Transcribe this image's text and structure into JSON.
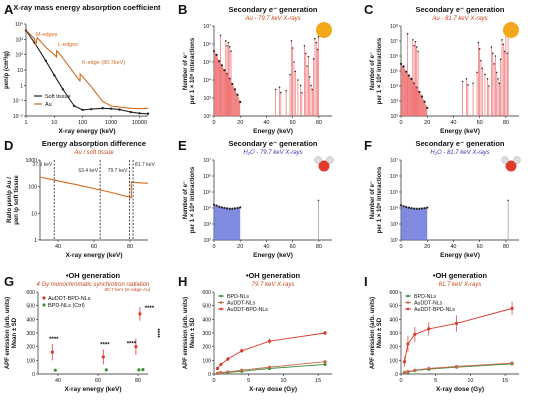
{
  "colors": {
    "au": "#d2691e",
    "soft": "#222222",
    "au_fill": "#ef6f6f",
    "h2o_fill": "#6a75d8",
    "orange_text": "#c8461e",
    "blue_text": "#3a3aaa",
    "green": "#3e8e3e",
    "mid": "#c66a4a",
    "red": "#d83a2a",
    "sphere": "#f3a81c"
  },
  "chart_data": [
    {
      "id": "A",
      "type": "line",
      "panel_letter": "A",
      "title": "X-ray mass energy absorption coefficient",
      "xlabel": "X-ray energy (keV)",
      "ylabel": "μen/ρ (cm²/g)",
      "xscale": "log",
      "yscale": "log",
      "xlim": [
        1,
        20000
      ],
      "ylim": [
        0.01,
        10000
      ],
      "x_ticks": [
        "1",
        "10",
        "100",
        "1000",
        "10000"
      ],
      "y_ticks": [
        "10⁻²",
        "10⁻¹",
        "1",
        "10",
        "10²",
        "10³",
        "10⁴"
      ],
      "legend": [
        "Soft tissue",
        "Au"
      ],
      "annotations": [
        "M-edges",
        "L-edges",
        "K-edge (80.7keV)"
      ],
      "series": [
        {
          "name": "Soft tissue",
          "x": [
            1,
            2,
            5,
            10,
            20,
            50,
            100,
            200,
            500,
            1000,
            2000,
            5000,
            10000,
            20000
          ],
          "y": [
            3800,
            600,
            40,
            4.5,
            0.55,
            0.045,
            0.025,
            0.028,
            0.032,
            0.03,
            0.026,
            0.018,
            0.015,
            0.014
          ]
        },
        {
          "name": "Au",
          "x": [
            1,
            2,
            2.2,
            2.5,
            5,
            10,
            11.9,
            12,
            14,
            20,
            50,
            80,
            80.7,
            81,
            100,
            200,
            500,
            1000,
            2000,
            5000,
            10000,
            20000
          ],
          "y": [
            4000,
            1100,
            400,
            1300,
            300,
            100,
            70,
            180,
            140,
            60,
            6,
            1.9,
            1.8,
            5.5,
            3.6,
            0.8,
            0.09,
            0.045,
            0.038,
            0.032,
            0.03,
            0.032
          ]
        }
      ]
    },
    {
      "id": "B",
      "type": "bar",
      "panel_letter": "B",
      "title": "Secondary e⁻ generation",
      "subtitle": "Au - 79.7 keV X-rays",
      "xlabel": "Energy (keV)",
      "ylabel": "Number of e⁻",
      "ylabel2": "per 1 × 10⁸ interactions",
      "xlim": [
        0,
        90
      ],
      "ylim": [
        100,
        10000000
      ],
      "yscale": "log",
      "x_ticks": [
        "0",
        "20",
        "40",
        "60",
        "80"
      ],
      "y_ticks": [
        "10²",
        "10³",
        "10⁴",
        "10⁵",
        "10⁶",
        "10⁷"
      ],
      "envelope": {
        "x": [
          0,
          2,
          4,
          6,
          8,
          10,
          12,
          14,
          16,
          18,
          20
        ],
        "y": [
          400000,
          250000,
          110000,
          65000,
          35000,
          22000,
          12000,
          6000,
          3000,
          1500,
          600
        ]
      },
      "lines": [
        {
          "x": 5,
          "y": 3000000
        },
        {
          "x": 9,
          "y": 1500000
        },
        {
          "x": 10,
          "y": 800000
        },
        {
          "x": 11,
          "y": 1200000
        },
        {
          "x": 12,
          "y": 700000
        },
        {
          "x": 13,
          "y": 400000
        },
        {
          "x": 47,
          "y": 3000
        },
        {
          "x": 50,
          "y": 4000
        },
        {
          "x": 51,
          "y": 2000
        },
        {
          "x": 55,
          "y": 2500
        },
        {
          "x": 58,
          "y": 20000
        },
        {
          "x": 59,
          "y": 1500000
        },
        {
          "x": 60,
          "y": 600000
        },
        {
          "x": 61,
          "y": 100000
        },
        {
          "x": 62,
          "y": 30000
        },
        {
          "x": 64,
          "y": 10000
        },
        {
          "x": 66,
          "y": 5000
        },
        {
          "x": 67,
          "y": 2000
        },
        {
          "x": 69,
          "y": 800000
        },
        {
          "x": 70,
          "y": 300000
        },
        {
          "x": 71,
          "y": 60000
        },
        {
          "x": 72,
          "y": 200000
        },
        {
          "x": 73,
          "y": 15000
        },
        {
          "x": 74,
          "y": 5000
        },
        {
          "x": 75,
          "y": 3000
        },
        {
          "x": 76,
          "y": 150000
        },
        {
          "x": 77,
          "y": 2000000
        },
        {
          "x": 78,
          "y": 1200000
        },
        {
          "x": 79,
          "y": 500000
        },
        {
          "x": 79.7,
          "y": 2500000
        }
      ]
    },
    {
      "id": "C",
      "type": "bar",
      "panel_letter": "C",
      "title": "Secondary e⁻ generation",
      "subtitle": "Au - 81.7 keV X-rays",
      "xlabel": "Energy (keV)",
      "ylabel": "Number of e⁻",
      "ylabel2": "per 1 × 10⁸ interactions",
      "xlim": [
        0,
        90
      ],
      "ylim": [
        100,
        100000000
      ],
      "yscale": "log",
      "x_ticks": [
        "0",
        "20",
        "40",
        "60",
        "80"
      ],
      "y_ticks": [
        "10²",
        "10³",
        "10⁴",
        "10⁵",
        "10⁶",
        "10⁷",
        "10⁸"
      ],
      "envelope": {
        "x": [
          0,
          2,
          4,
          6,
          8,
          10,
          12,
          14,
          16,
          18,
          20
        ],
        "y": [
          300000,
          200000,
          90000,
          50000,
          30000,
          15000,
          8000,
          4000,
          2000,
          900,
          350
        ]
      },
      "lines": [
        {
          "x": 5,
          "y": 30000000
        },
        {
          "x": 9,
          "y": 12000000
        },
        {
          "x": 10,
          "y": 5000000
        },
        {
          "x": 11,
          "y": 9000000
        },
        {
          "x": 12,
          "y": 4000000
        },
        {
          "x": 13,
          "y": 2000000
        },
        {
          "x": 47,
          "y": 20000
        },
        {
          "x": 50,
          "y": 30000
        },
        {
          "x": 51,
          "y": 12000
        },
        {
          "x": 55,
          "y": 15000
        },
        {
          "x": 58,
          "y": 80000
        },
        {
          "x": 59,
          "y": 8000000
        },
        {
          "x": 60,
          "y": 3000000
        },
        {
          "x": 61,
          "y": 500000
        },
        {
          "x": 62,
          "y": 150000
        },
        {
          "x": 64,
          "y": 60000
        },
        {
          "x": 66,
          "y": 30000
        },
        {
          "x": 67,
          "y": 10000
        },
        {
          "x": 69,
          "y": 4000000
        },
        {
          "x": 70,
          "y": 1500000
        },
        {
          "x": 71,
          "y": 300000
        },
        {
          "x": 72,
          "y": 1000000
        },
        {
          "x": 73,
          "y": 80000
        },
        {
          "x": 74,
          "y": 30000
        },
        {
          "x": 75,
          "y": 15000
        },
        {
          "x": 76,
          "y": 600000
        },
        {
          "x": 77,
          "y": 12000000
        },
        {
          "x": 78,
          "y": 6000000
        },
        {
          "x": 79,
          "y": 2000000
        },
        {
          "x": 80,
          "y": 40000000
        },
        {
          "x": 81,
          "y": 1500000
        },
        {
          "x": 81.7,
          "y": 20000000
        }
      ]
    },
    {
      "id": "D",
      "type": "line",
      "panel_letter": "D",
      "title": "Energy absorption difference",
      "subtitle": "Au / soft tissue",
      "xlabel": "X-ray energy (keV)",
      "ylabel": "Ratio μen/ρ Au /",
      "ylabel2": "μen /ρ soft tissue",
      "xlim": [
        30,
        90
      ],
      "ylim": [
        1,
        1000
      ],
      "yscale": "log",
      "x_ticks": [
        "40",
        "60",
        "80"
      ],
      "y_ticks": [
        "1",
        "10",
        "100",
        "1000"
      ],
      "vlines": [
        {
          "x": 37.9,
          "label": "37.9 keV"
        },
        {
          "x": 63.4,
          "label": "63.4 keV"
        },
        {
          "x": 79.7,
          "label": "79.7 keV"
        },
        {
          "x": 81.7,
          "label": "81.7 keV"
        }
      ],
      "series": [
        {
          "name": "Au / soft tissue",
          "x": [
            30,
            40,
            50,
            60,
            70,
            80,
            80.7,
            80.7001,
            85,
            90
          ],
          "y": [
            230,
            165,
            120,
            85,
            60,
            40,
            38,
            150,
            140,
            135
          ]
        }
      ]
    },
    {
      "id": "E",
      "type": "bar",
      "panel_letter": "E",
      "title": "Secondary e⁻ generation",
      "subtitle": "H₂O - 79.7 keV X-rays",
      "xlabel": "Energy (keV)",
      "ylabel": "Number of e⁻",
      "ylabel2": "per 1 × 10⁸ interactions",
      "xlim": [
        0,
        90
      ],
      "ylim": [
        100,
        10000000
      ],
      "yscale": "log",
      "x_ticks": [
        "0",
        "20",
        "40",
        "60",
        "80"
      ],
      "y_ticks": [
        "10²",
        "10³",
        "10⁴",
        "10⁵",
        "10⁶",
        "10⁷"
      ],
      "envelope": {
        "x": [
          0,
          2,
          4,
          6,
          8,
          10,
          12,
          14,
          16,
          18,
          20
        ],
        "y": [
          16000,
          14000,
          12000,
          11000,
          10000,
          9500,
          9000,
          9000,
          9500,
          10000,
          11000
        ]
      },
      "lines": [
        {
          "x": 79.7,
          "y": 30000
        }
      ]
    },
    {
      "id": "F",
      "type": "bar",
      "panel_letter": "F",
      "title": "Secondary e⁻ generation",
      "subtitle": "H₂O - 81.7 keV X-rays",
      "xlabel": "Energy (keV)",
      "ylabel": "Number of e⁻",
      "ylabel2": "per 1 × 10⁸ interactions",
      "xlim": [
        0,
        90
      ],
      "ylim": [
        100,
        10000000
      ],
      "yscale": "log",
      "x_ticks": [
        "0",
        "20",
        "40",
        "60",
        "80"
      ],
      "y_ticks": [
        "10²",
        "10³",
        "10⁴",
        "10⁵",
        "10⁶",
        "10⁷"
      ],
      "envelope": {
        "x": [
          0,
          2,
          4,
          6,
          8,
          10,
          12,
          14,
          16,
          18,
          20
        ],
        "y": [
          15000,
          13000,
          11500,
          10500,
          9800,
          9200,
          9000,
          9000,
          9300,
          9800,
          10500
        ]
      },
      "lines": [
        {
          "x": 81.7,
          "y": 30000
        }
      ]
    },
    {
      "id": "G",
      "type": "scatter",
      "panel_letter": "G",
      "title": "•OH generation",
      "subtitle": "4 Gy monochromatic synchrotron radiation",
      "xlabel": "X-ray energy (keV)",
      "ylabel": "APF emission (arb. units)",
      "ylabel2": "Mean ± SD",
      "xlim": [
        30,
        85
      ],
      "ylim": [
        0,
        600
      ],
      "x_ticks": [
        "40",
        "60",
        "80"
      ],
      "y_ticks": [
        "0",
        "100",
        "200",
        "300",
        "400",
        "500",
        "600"
      ],
      "legend": [
        "AuDDT-BPD-NLs",
        "BPD-NLs (Ctrl)"
      ],
      "annotations": [
        "80.7 keV (K-edge Au)",
        "****",
        "****",
        "****",
        "****",
        "****"
      ],
      "series": [
        {
          "name": "AuDDT-BPD-NLs",
          "x": [
            37.9,
            63.4,
            79.7,
            81.7
          ],
          "y": [
            160,
            125,
            200,
            440
          ],
          "err": [
            60,
            55,
            60,
            50
          ]
        },
        {
          "name": "BPD-NLs (Ctrl)",
          "x": [
            37.9,
            63.4,
            79.7,
            81.7
          ],
          "y": [
            28,
            30,
            30,
            32
          ],
          "err": [
            5,
            5,
            5,
            5
          ]
        }
      ]
    },
    {
      "id": "H",
      "type": "line",
      "panel_letter": "H",
      "title": "•OH generation",
      "subtitle": "79.7 keV X-rays",
      "xlabel": "X-ray dose (Gy)",
      "ylabel": "APF emission (arb. units)",
      "ylabel2": "Mean ± SD",
      "xlim": [
        0,
        17
      ],
      "ylim": [
        0,
        600
      ],
      "x_ticks": [
        "0",
        "5",
        "10",
        "15"
      ],
      "y_ticks": [
        "0",
        "100",
        "200",
        "300",
        "400",
        "500",
        "600"
      ],
      "legend": [
        "BPD-NLs",
        "AuDDT-NLs",
        "AuDDT-BPD-NLs"
      ],
      "series": [
        {
          "name": "BPD-NLs",
          "x": [
            0.5,
            1,
            2,
            4,
            8,
            16
          ],
          "y": [
            5,
            8,
            12,
            20,
            40,
            70
          ],
          "err": [
            3,
            3,
            4,
            5,
            6,
            8
          ]
        },
        {
          "name": "AuDDT-NLs",
          "x": [
            0.5,
            1,
            2,
            4,
            8,
            16
          ],
          "y": [
            6,
            10,
            15,
            28,
            50,
            90
          ],
          "err": [
            3,
            3,
            4,
            5,
            7,
            9
          ]
        },
        {
          "name": "AuDDT-BPD-NLs",
          "x": [
            0.5,
            1,
            2,
            4,
            8,
            16
          ],
          "y": [
            40,
            70,
            110,
            170,
            240,
            300
          ],
          "err": [
            10,
            12,
            14,
            15,
            18,
            15
          ]
        }
      ]
    },
    {
      "id": "I",
      "type": "line",
      "panel_letter": "I",
      "title": "•OH generation",
      "subtitle": "81.7 keV X-rays",
      "xlabel": "X-ray dose (Gy)",
      "ylabel": "APF emission (arb. units)",
      "ylabel2": "Mean ± SD",
      "xlim": [
        0,
        17
      ],
      "ylim": [
        0,
        600
      ],
      "x_ticks": [
        "0",
        "5",
        "10",
        "15"
      ],
      "y_ticks": [
        "0",
        "100",
        "200",
        "300",
        "400",
        "500",
        "600"
      ],
      "legend": [
        "BPD-NLs",
        "AuDDT-NLs",
        "AuDDT-BPD-NLs"
      ],
      "series": [
        {
          "name": "BPD-NLs",
          "x": [
            0.5,
            1,
            2,
            4,
            8,
            16
          ],
          "y": [
            10,
            15,
            25,
            35,
            50,
            75
          ],
          "err": [
            5,
            5,
            6,
            8,
            10,
            12
          ]
        },
        {
          "name": "AuDDT-NLs",
          "x": [
            0.5,
            1,
            2,
            4,
            8,
            16
          ],
          "y": [
            12,
            18,
            28,
            40,
            55,
            80
          ],
          "err": [
            5,
            5,
            6,
            8,
            10,
            12
          ]
        },
        {
          "name": "AuDDT-BPD-NLs",
          "x": [
            0.5,
            1,
            2,
            4,
            8,
            16
          ],
          "y": [
            90,
            220,
            290,
            330,
            370,
            480
          ],
          "err": [
            40,
            60,
            55,
            50,
            60,
            50
          ]
        }
      ]
    }
  ]
}
